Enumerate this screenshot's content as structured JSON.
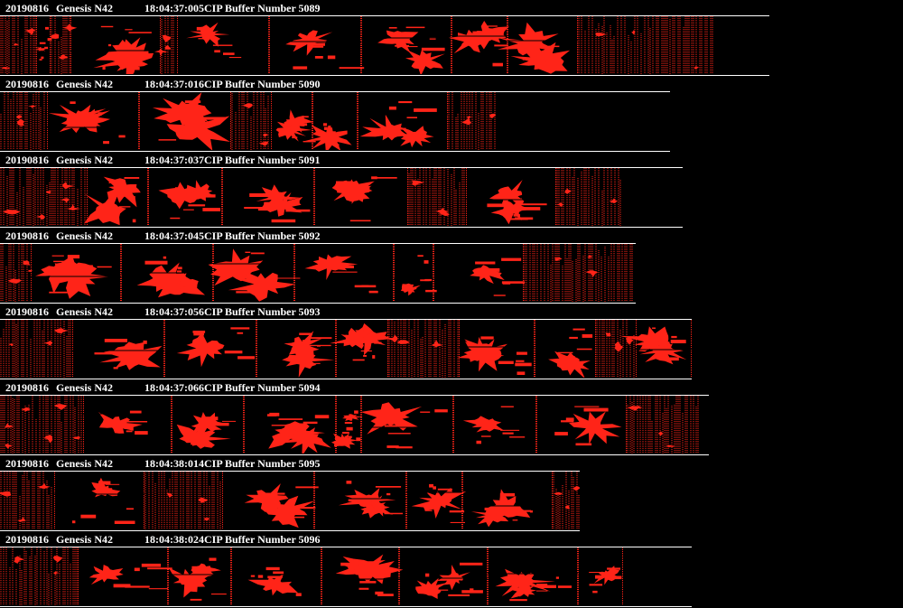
{
  "image_color": "#ff2418",
  "background_color": "#000000",
  "header_color": "#ffffff",
  "buffers": [
    {
      "date": "20190816",
      "probe": "Genesis N42",
      "time": "18:04:37:005",
      "label": "CIP Buffer Number 5089"
    },
    {
      "date": "20190816",
      "probe": "Genesis N42",
      "time": "18:04:37:016",
      "label": "CIP Buffer Number 5090"
    },
    {
      "date": "20190816",
      "probe": "Genesis N42",
      "time": "18:04:37:037",
      "label": "CIP Buffer Number 5091"
    },
    {
      "date": "20190816",
      "probe": "Genesis N42",
      "time": "18:04:37:045",
      "label": "CIP Buffer Number 5092"
    },
    {
      "date": "20190816",
      "probe": "Genesis N42",
      "time": "18:04:37:056",
      "label": "CIP Buffer Number 5093"
    },
    {
      "date": "20190816",
      "probe": "Genesis N42",
      "time": "18:04:37:066",
      "label": "CIP Buffer Number 5094"
    },
    {
      "date": "20190816",
      "probe": "Genesis N42",
      "time": "18:04:38:014",
      "label": "CIP Buffer Number 5095"
    },
    {
      "date": "20190816",
      "probe": "Genesis N42",
      "time": "18:04:38:024",
      "label": "CIP Buffer Number 5096"
    }
  ]
}
